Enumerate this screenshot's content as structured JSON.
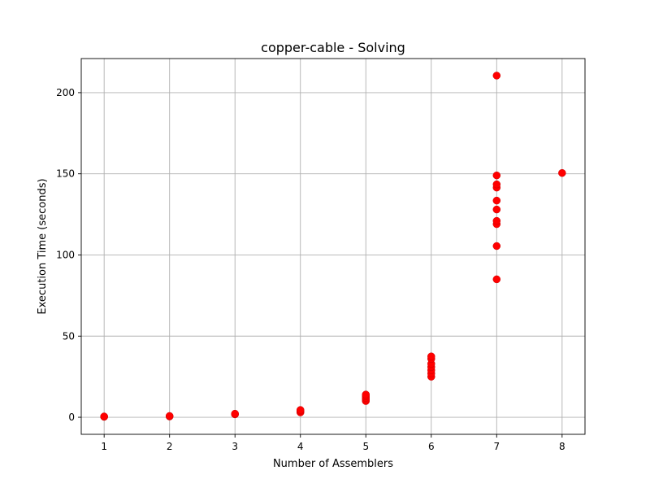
{
  "chart_data": {
    "type": "scatter",
    "title": "copper-cable - Solving",
    "xlabel": "Number of Assemblers",
    "ylabel": "Execution Time (seconds)",
    "xlim": [
      0.65,
      8.35
    ],
    "ylim": [
      -10.5,
      221
    ],
    "xticks": [
      1,
      2,
      3,
      4,
      5,
      6,
      7,
      8
    ],
    "yticks": [
      0,
      50,
      100,
      150,
      200
    ],
    "grid": true,
    "marker_color": "#ff0000",
    "marker_edge_color": "#cc0000",
    "series": [
      {
        "points": [
          {
            "x": 1,
            "y": 0.3
          },
          {
            "x": 1,
            "y": 0.5
          },
          {
            "x": 2,
            "y": 0.5
          },
          {
            "x": 2,
            "y": 0.8
          },
          {
            "x": 3,
            "y": 1.8
          },
          {
            "x": 3,
            "y": 2.2
          },
          {
            "x": 4,
            "y": 3.0
          },
          {
            "x": 4,
            "y": 3.8
          },
          {
            "x": 4,
            "y": 4.5
          },
          {
            "x": 5,
            "y": 10
          },
          {
            "x": 5,
            "y": 11
          },
          {
            "x": 5,
            "y": 12
          },
          {
            "x": 5,
            "y": 13
          },
          {
            "x": 5,
            "y": 14
          },
          {
            "x": 6,
            "y": 25
          },
          {
            "x": 6,
            "y": 27
          },
          {
            "x": 6,
            "y": 29
          },
          {
            "x": 6,
            "y": 31
          },
          {
            "x": 6,
            "y": 33
          },
          {
            "x": 6,
            "y": 36
          },
          {
            "x": 6,
            "y": 37.5
          },
          {
            "x": 7,
            "y": 85
          },
          {
            "x": 7,
            "y": 105.5
          },
          {
            "x": 7,
            "y": 119
          },
          {
            "x": 7,
            "y": 121
          },
          {
            "x": 7,
            "y": 128
          },
          {
            "x": 7,
            "y": 133.5
          },
          {
            "x": 7,
            "y": 141.5
          },
          {
            "x": 7,
            "y": 143.5
          },
          {
            "x": 7,
            "y": 149
          },
          {
            "x": 7,
            "y": 210.5
          },
          {
            "x": 8,
            "y": 150.5
          }
        ]
      }
    ]
  }
}
